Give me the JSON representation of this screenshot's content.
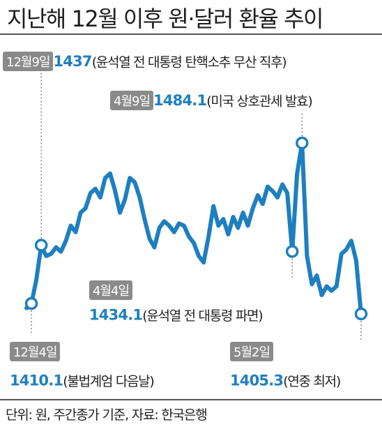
{
  "title": "지난해 12월 이후 원·달러 환율 추이",
  "source": "단위: 원, 주간종가 기준, 자료: 한국은행",
  "annotations": [
    {
      "date": "12월4일",
      "value": "1410.1",
      "note": "(불법계엄 다음날)"
    },
    {
      "date": "12월9일",
      "value": "1437",
      "note": "(윤석열 전 대통령 탄핵소추 무산 직후)"
    },
    {
      "date": "4월4일",
      "value": "1434.1",
      "note": "(윤석열 전 대통령 파면)"
    },
    {
      "date": "4월9일",
      "value": "1484.1",
      "note": "(미국 상호관세 발효)"
    },
    {
      "date": "5월2일",
      "value": "1405.3",
      "note": "(연중 최저)"
    }
  ],
  "colors": {
    "line": "#1e7fc0",
    "date_box": "#8a8a8a",
    "value_text": "#1e7fc0"
  },
  "chart_data": {
    "type": "line",
    "title": "지난해 12월 이후 원·달러 환율 추이",
    "unit": "원",
    "ylim": [
      1395,
      1500
    ],
    "series": [
      {
        "values": [
          1408,
          1410.1,
          1421,
          1437,
          1432,
          1433,
          1436,
          1434,
          1439,
          1446,
          1443,
          1452,
          1454,
          1461,
          1463,
          1459,
          1468,
          1470,
          1462,
          1452,
          1458,
          1468,
          1466,
          1459,
          1449,
          1440,
          1436,
          1445,
          1448,
          1446,
          1443,
          1447,
          1446,
          1441,
          1438,
          1432,
          1429,
          1441,
          1455,
          1446,
          1449,
          1442,
          1450,
          1445,
          1452,
          1446,
          1454,
          1460,
          1456,
          1464,
          1462,
          1459,
          1465,
          1461,
          1434.1,
          1470,
          1484.1,
          1432,
          1419,
          1423,
          1414,
          1418,
          1416,
          1418,
          1433,
          1435,
          1439,
          1430,
          1405.3
        ]
      }
    ],
    "markers": [
      {
        "index": 1,
        "label": "12월4일"
      },
      {
        "index": 3,
        "label": "12월9일"
      },
      {
        "index": 54,
        "label": "4월4일"
      },
      {
        "index": 56,
        "label": "4월9일"
      },
      {
        "index": 68,
        "label": "5월2일"
      }
    ],
    "grid": false,
    "legend": "none"
  }
}
